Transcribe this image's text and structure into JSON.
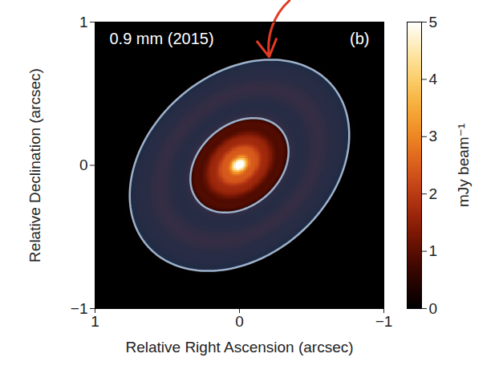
{
  "chart_data": {
    "type": "image",
    "title": "0.9 mm (2015)",
    "panel": "(b)",
    "x_label": "Relative Right Ascension (arcsec)",
    "y_label": "Relative Declination (arcsec)",
    "xlim": [
      1,
      -1
    ],
    "ylim": [
      -1,
      1
    ],
    "xticks": [
      1,
      0,
      {
        "value": -1,
        "label": "−1"
      }
    ],
    "yticks": [
      {
        "value": -1,
        "label": "−1"
      },
      0,
      1
    ],
    "disk": {
      "inclination": 42,
      "position_angle": 132,
      "rings": [
        {
          "radius": 0,
          "width": 0.045,
          "intensity": 4.0
        },
        {
          "radius": 0,
          "width": 0.22,
          "intensity": 1.8
        },
        {
          "radius": 0.13,
          "width": 0.03,
          "intensity": 0.8
        },
        {
          "radius": 0.22,
          "width": 0.035,
          "intensity": 0.5
        },
        {
          "radius": 0.34,
          "width": 0.03,
          "intensity": 0.35
        },
        {
          "radius": 0.62,
          "width": 0.07,
          "intensity": 0.45
        },
        {
          "radius": 0.78,
          "width": 0.05,
          "intensity": 0.2
        }
      ]
    },
    "regions": [
      {
        "radius": 0.38
      },
      {
        "radius": 0.85
      }
    ],
    "colorbar": {
      "label": "mJy beam⁻¹",
      "range": [
        0,
        5
      ],
      "ticks": [
        0,
        1,
        2,
        3,
        4,
        5
      ]
    }
  }
}
